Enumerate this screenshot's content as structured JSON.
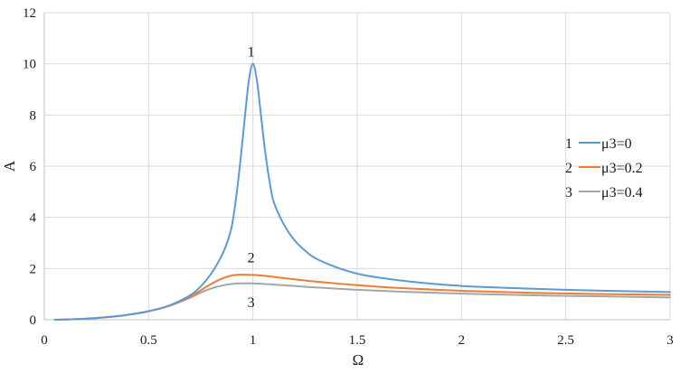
{
  "chart_data": {
    "type": "line",
    "title": "",
    "xlabel": "Ω",
    "ylabel": "A",
    "xlim": [
      0,
      3
    ],
    "ylim": [
      0,
      12
    ],
    "x_ticks": [
      0,
      0.5,
      1,
      1.5,
      2,
      2.5,
      3
    ],
    "x_tick_labels": [
      "0",
      "0.5",
      "1",
      "1.5",
      "2",
      "2.5",
      "3"
    ],
    "y_ticks": [
      0,
      2,
      4,
      6,
      8,
      10,
      12
    ],
    "y_tick_labels": [
      "0",
      "2",
      "4",
      "6",
      "8",
      "10",
      "12"
    ],
    "grid": true,
    "legend_position": "right",
    "series": [
      {
        "name": "μ3=0",
        "curve_label": "1",
        "color": "#5b9bd5",
        "x": [
          0.05,
          0.1,
          0.2,
          0.3,
          0.4,
          0.5,
          0.6,
          0.7,
          0.75,
          0.8,
          0.85,
          0.88,
          0.9,
          0.92,
          0.94,
          0.96,
          0.98,
          1.0,
          1.02,
          1.04,
          1.06,
          1.08,
          1.1,
          1.15,
          1.2,
          1.25,
          1.3,
          1.4,
          1.5,
          1.6,
          1.8,
          2.0,
          2.2,
          2.5,
          2.8,
          3.0
        ],
        "y": [
          0.0,
          0.01,
          0.04,
          0.1,
          0.19,
          0.33,
          0.56,
          0.96,
          1.3,
          1.8,
          2.5,
          3.1,
          3.7,
          4.8,
          6.2,
          7.8,
          9.3,
          10.0,
          9.3,
          7.9,
          6.5,
          5.4,
          4.6,
          3.7,
          3.1,
          2.7,
          2.4,
          2.05,
          1.8,
          1.65,
          1.45,
          1.32,
          1.25,
          1.17,
          1.11,
          1.08
        ]
      },
      {
        "name": "μ3=0.2",
        "curve_label": "2",
        "color": "#ed7d31",
        "x": [
          0.05,
          0.1,
          0.2,
          0.3,
          0.4,
          0.5,
          0.6,
          0.7,
          0.75,
          0.8,
          0.85,
          0.9,
          0.95,
          1.0,
          1.05,
          1.1,
          1.2,
          1.3,
          1.5,
          1.7,
          2.0,
          2.3,
          2.6,
          3.0
        ],
        "y": [
          0.0,
          0.01,
          0.04,
          0.1,
          0.19,
          0.33,
          0.55,
          0.9,
          1.15,
          1.4,
          1.6,
          1.73,
          1.76,
          1.75,
          1.72,
          1.67,
          1.58,
          1.49,
          1.35,
          1.24,
          1.13,
          1.06,
          1.01,
          0.97
        ]
      },
      {
        "name": "μ3=0.4",
        "curve_label": "3",
        "color": "#a5a5a5",
        "x": [
          0.05,
          0.1,
          0.2,
          0.3,
          0.4,
          0.5,
          0.6,
          0.7,
          0.75,
          0.8,
          0.85,
          0.9,
          0.95,
          1.0,
          1.05,
          1.1,
          1.2,
          1.3,
          1.5,
          1.7,
          2.0,
          2.3,
          2.6,
          3.0
        ],
        "y": [
          0.0,
          0.01,
          0.04,
          0.1,
          0.19,
          0.33,
          0.54,
          0.86,
          1.06,
          1.22,
          1.33,
          1.4,
          1.42,
          1.42,
          1.4,
          1.37,
          1.32,
          1.26,
          1.17,
          1.1,
          1.02,
          0.96,
          0.92,
          0.87
        ]
      }
    ]
  }
}
